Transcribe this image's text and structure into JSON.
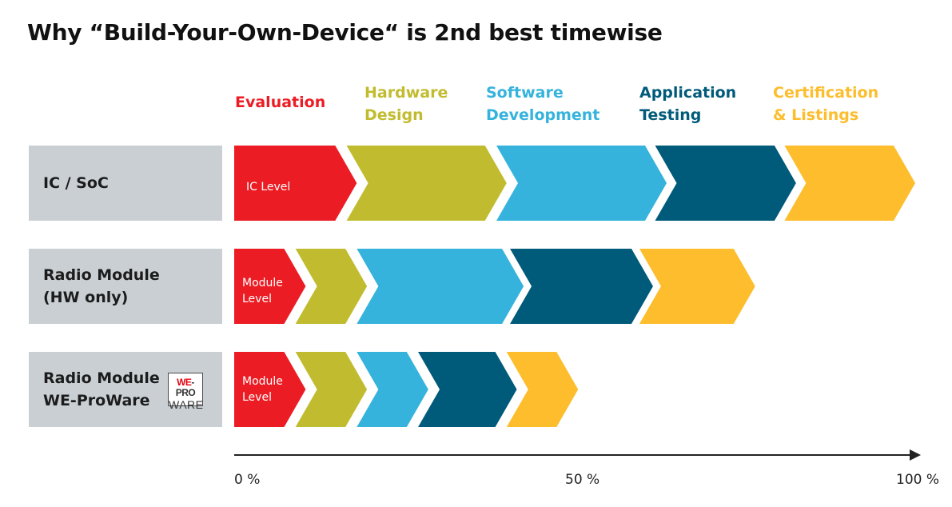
{
  "title": "Why “Build-Your-Own-Device“ is 2nd best timewise",
  "colors": {
    "evaluation": "#ec1c24",
    "hardware": "#c1bc2f",
    "software": "#35b3dc",
    "testing": "#005a7a",
    "certification": "#fdbd2c",
    "row_label_bg": "#c9cfd3",
    "axis": "#222222"
  },
  "phases": [
    {
      "key": "evaluation",
      "label": "Evaluation"
    },
    {
      "key": "hardware",
      "label": "Hardware\nDesign"
    },
    {
      "key": "software",
      "label": "Software\nDevelopment"
    },
    {
      "key": "testing",
      "label": "Application\nTesting"
    },
    {
      "key": "certification",
      "label": "Certification\n& Listings"
    }
  ],
  "rows": [
    {
      "label": "IC / SoC",
      "segment_label": "IC Level",
      "segments": [
        {
          "phase": "evaluation",
          "start": 0,
          "end": 18
        },
        {
          "phase": "hardware",
          "start": 16.5,
          "end": 40
        },
        {
          "phase": "software",
          "start": 38.5,
          "end": 63.5
        },
        {
          "phase": "testing",
          "start": 61.8,
          "end": 82.5
        },
        {
          "phase": "certification",
          "start": 80.8,
          "end": 100
        }
      ]
    },
    {
      "label": "Radio Module\n(HW only)",
      "segment_label": "Module\nLevel",
      "segments": [
        {
          "phase": "evaluation",
          "start": 0,
          "end": 10.5
        },
        {
          "phase": "hardware",
          "start": 9,
          "end": 19.5
        },
        {
          "phase": "software",
          "start": 18,
          "end": 42.5
        },
        {
          "phase": "testing",
          "start": 40.5,
          "end": 61.5
        },
        {
          "phase": "certification",
          "start": 59.5,
          "end": 76.5
        }
      ]
    },
    {
      "label": "Radio Module\nWE-ProWare",
      "segment_label": "Module\nLevel",
      "logo": {
        "line1_a": "WE",
        "line1_b": "-PRO",
        "line2": "WARE"
      },
      "segments": [
        {
          "phase": "evaluation",
          "start": 0,
          "end": 10.5
        },
        {
          "phase": "hardware",
          "start": 9,
          "end": 19.5
        },
        {
          "phase": "software",
          "start": 18,
          "end": 28.5
        },
        {
          "phase": "testing",
          "start": 27,
          "end": 41.5
        },
        {
          "phase": "certification",
          "start": 40,
          "end": 50.5
        }
      ]
    }
  ],
  "axis": {
    "ticks": [
      {
        "value": 0,
        "label": "0 %"
      },
      {
        "value": 50,
        "label": "50 %"
      },
      {
        "value": 100,
        "label": "100 %"
      }
    ]
  }
}
